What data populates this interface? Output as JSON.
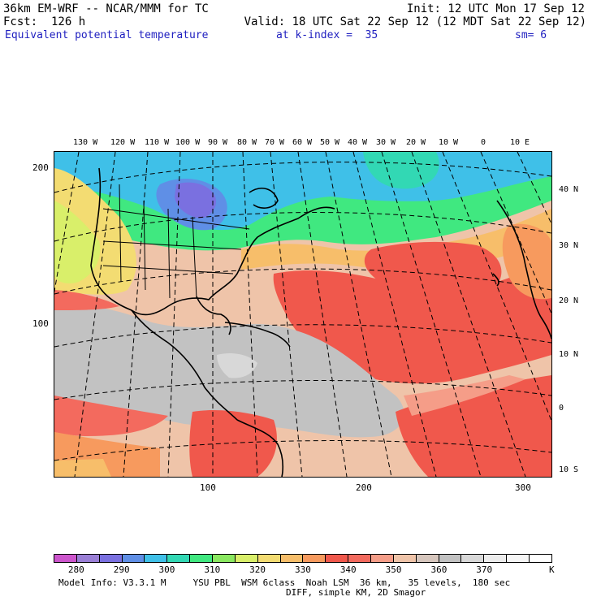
{
  "header": {
    "model": "36km EM-WRF -- NCAR/MMM for TC",
    "init": "Init: 12 UTC Mon 17 Sep 12",
    "fcst": "Fcst:  126 h",
    "valid": "Valid: 18 UTC Sat 22 Sep 12 (12 MDT Sat 22 Sep 12)",
    "field": "Equivalent potential temperature",
    "level": "at k-index =  35",
    "smooth": "sm= 6"
  },
  "map": {
    "lon_labels": [
      "130 W",
      "120 W",
      "110 W",
      "100 W",
      "90 W",
      "80 W",
      "70 W",
      "60 W",
      "50 W",
      "40 W",
      "30 W",
      "20 W",
      "10 W",
      "0",
      "10 E"
    ],
    "lat_labels": [
      "40 N",
      "30 N",
      "20 N",
      "10 N",
      "0",
      "10 S"
    ],
    "y_axis": [
      "200",
      "100"
    ],
    "x_axis": [
      "100",
      "200",
      "300"
    ]
  },
  "colorbar": {
    "colors": [
      "#cc55cc",
      "#9a7fd6",
      "#7a70e0",
      "#5f8fe6",
      "#3fc0e8",
      "#32d8b4",
      "#40e880",
      "#8ae860",
      "#d9ef6a",
      "#f3dc72",
      "#f7be6a",
      "#f79a5e",
      "#f0584c",
      "#f36a5e",
      "#f59d88",
      "#efc4a9",
      "#d6c6bd",
      "#c2c2c2",
      "#d8d8d8",
      "#ececec",
      "#f6f6f6",
      "#ffffff"
    ],
    "labels": [
      "280",
      "290",
      "300",
      "310",
      "320",
      "330",
      "340",
      "350",
      "360",
      "370"
    ],
    "unit": "K"
  },
  "footer": {
    "line1": "Model Info: V3.3.1 M     YSU PBL  WSM 6class  Noah LSM  36 km,   35 levels,  180 sec",
    "line2": "DIFF, simple KM, 2D Smagor"
  }
}
